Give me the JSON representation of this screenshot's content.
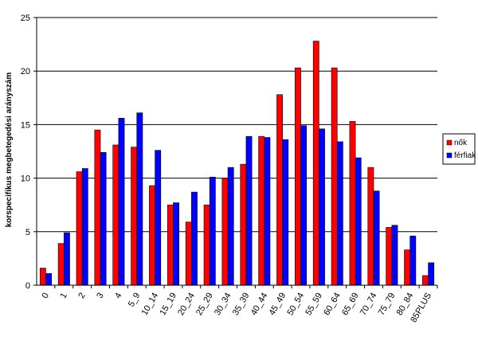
{
  "chart_data": {
    "type": "bar",
    "title": "",
    "xlabel": "",
    "ylabel": "korspecifikus megbetegedési arányszám",
    "ylim": [
      0,
      25
    ],
    "yticks": [
      0,
      5,
      10,
      15,
      20,
      25
    ],
    "grid": "horizontal",
    "legend_position": "right",
    "categories": [
      "0",
      "1",
      "2",
      "3",
      "4",
      "5_9",
      "10_14",
      "15_19",
      "20_24",
      "25_29",
      "30_34",
      "35_39",
      "40_44",
      "45_49",
      "50_54",
      "55_59",
      "60_64",
      "65_69",
      "70_74",
      "75_79",
      "80_84",
      "85PLUS"
    ],
    "series": [
      {
        "name": "nők",
        "color": "#ff0000",
        "values": [
          1.6,
          3.9,
          10.6,
          14.5,
          13.1,
          12.9,
          9.3,
          7.5,
          5.9,
          7.5,
          10.0,
          11.3,
          13.9,
          17.8,
          20.3,
          22.8,
          20.3,
          15.3,
          11.0,
          5.4,
          3.3,
          0.9
        ]
      },
      {
        "name": "férfiak",
        "color": "#0000ff",
        "values": [
          1.1,
          4.9,
          10.9,
          12.4,
          15.6,
          16.1,
          12.6,
          7.7,
          8.7,
          10.1,
          11.0,
          13.9,
          13.8,
          13.6,
          14.9,
          14.6,
          13.4,
          11.9,
          8.8,
          5.6,
          4.6,
          2.1
        ]
      }
    ]
  }
}
